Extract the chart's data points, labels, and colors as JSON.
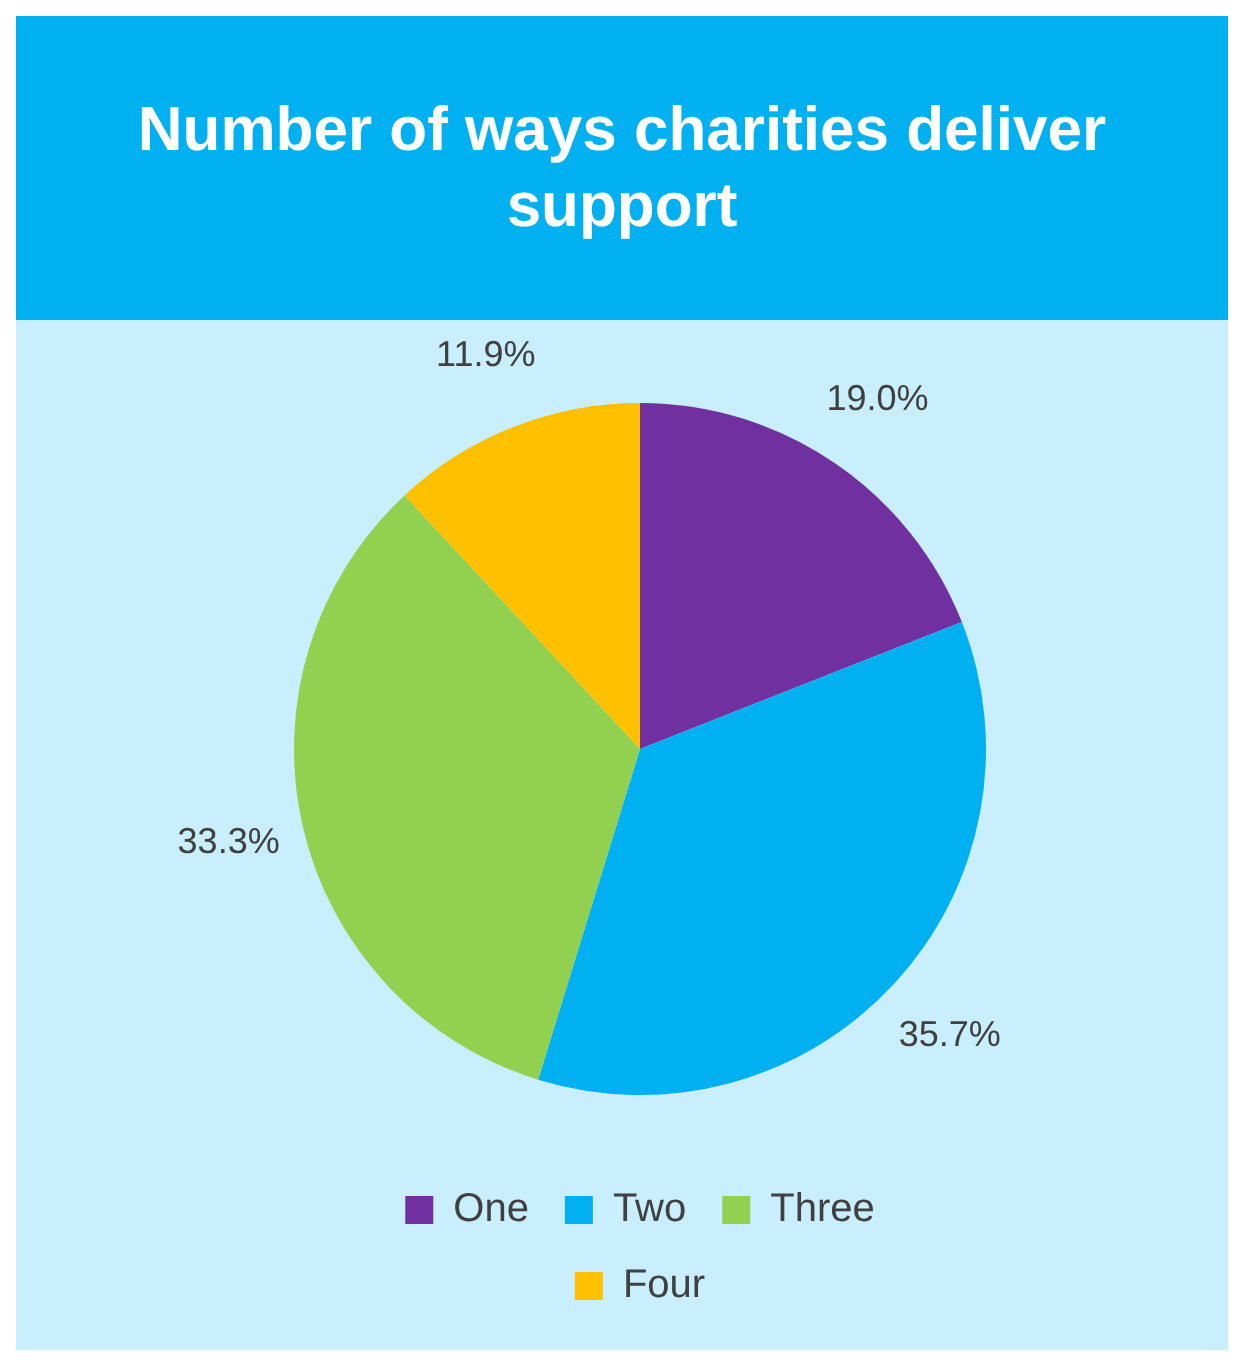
{
  "chart_data": {
    "type": "pie",
    "title": "Number of ways charities deliver support",
    "categories": [
      "One",
      "Two",
      "Three",
      "Four"
    ],
    "values": [
      19.0,
      35.7,
      33.3,
      11.9
    ],
    "colors": [
      "#7030a0",
      "#00b0f0",
      "#92d050",
      "#ffc000"
    ],
    "value_labels": [
      "19.0%",
      "35.7%",
      "33.3%",
      "11.9%"
    ],
    "legend": "bottom"
  }
}
